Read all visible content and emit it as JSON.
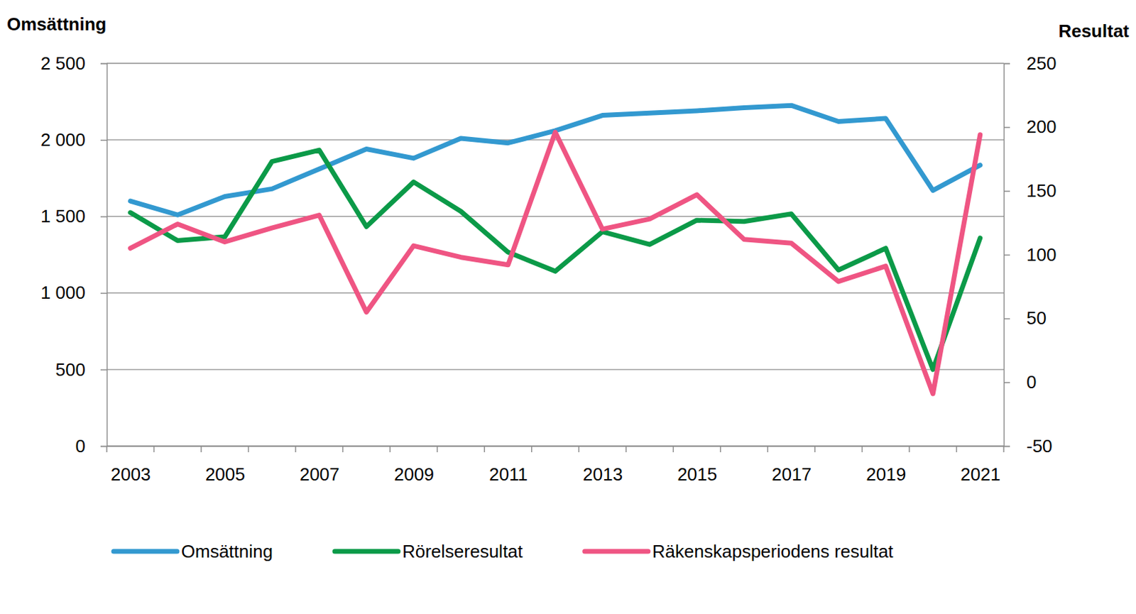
{
  "chart_data": {
    "type": "line",
    "y_label": "Omsättning",
    "y2_label": "Resultat",
    "categories": [
      "2003",
      null,
      "2005",
      null,
      "2007",
      null,
      "2009",
      null,
      "2011",
      null,
      "2013",
      null,
      "2015",
      null,
      "2017",
      null,
      "2019",
      null,
      "2021"
    ],
    "series": [
      {
        "name": "Omsättning",
        "color": "#3399d0",
        "axis": "y",
        "values": [
          1600,
          1510,
          1630,
          1680,
          1810,
          1940,
          1880,
          2010,
          1980,
          2060,
          2160,
          2175,
          2190,
          2210,
          2225,
          2120,
          2140,
          1670,
          1835
        ]
      },
      {
        "name": "Rörelseresultat",
        "color": "#0b9a48",
        "axis": "y2",
        "values": [
          133,
          111,
          114,
          173,
          182,
          122,
          157,
          134,
          102,
          87,
          118,
          108,
          127,
          126,
          132,
          88,
          105,
          10,
          113
        ]
      },
      {
        "name": "Räkenskapsperiodens resultat",
        "color": "#ef5583",
        "axis": "y2",
        "values": [
          105,
          124,
          110,
          121,
          131,
          55,
          107,
          98,
          92,
          196,
          120,
          128,
          147,
          112,
          109,
          79,
          91,
          -9,
          194
        ]
      }
    ],
    "ylim": [
      0,
      2500
    ],
    "yticks": [
      0,
      500,
      {
        "value": 1000,
        "label": "1 000"
      },
      {
        "value": 1500,
        "label": "1 500"
      },
      {
        "value": 2000,
        "label": "2 000"
      },
      {
        "value": 2500,
        "label": "2 500"
      }
    ],
    "y2lim": [
      -50,
      250
    ],
    "y2ticks": [
      -50,
      0,
      50,
      100,
      150,
      200,
      250
    ],
    "grid": true,
    "legend": "bottom"
  }
}
